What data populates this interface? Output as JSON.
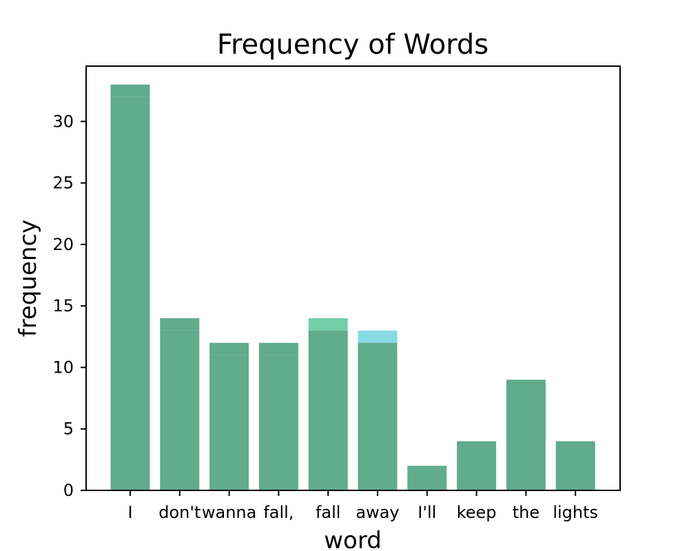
{
  "chart_data": {
    "type": "bar",
    "title": "Frequency of Words",
    "xlabel": "word",
    "ylabel": "frequency",
    "categories": [
      "I",
      "don't",
      "wanna",
      "fall,",
      "fall",
      "away",
      "I'll",
      "keep",
      "the",
      "lights"
    ],
    "series": [
      {
        "values": [
          32,
          13,
          11,
          11,
          13,
          12,
          2,
          4,
          9,
          4
        ],
        "color": "#61ab8f"
      },
      {
        "values": [
          33,
          14,
          12,
          12,
          14,
          13,
          2,
          4,
          9,
          4
        ],
        "color": "#74cfa8",
        "note_color_for_top_cap": "#7fd8e0"
      }
    ],
    "ylim": [
      0,
      34.5
    ],
    "yticks": [
      0,
      5,
      10,
      15,
      20,
      25,
      30
    ],
    "grid": false,
    "legend": "none"
  }
}
